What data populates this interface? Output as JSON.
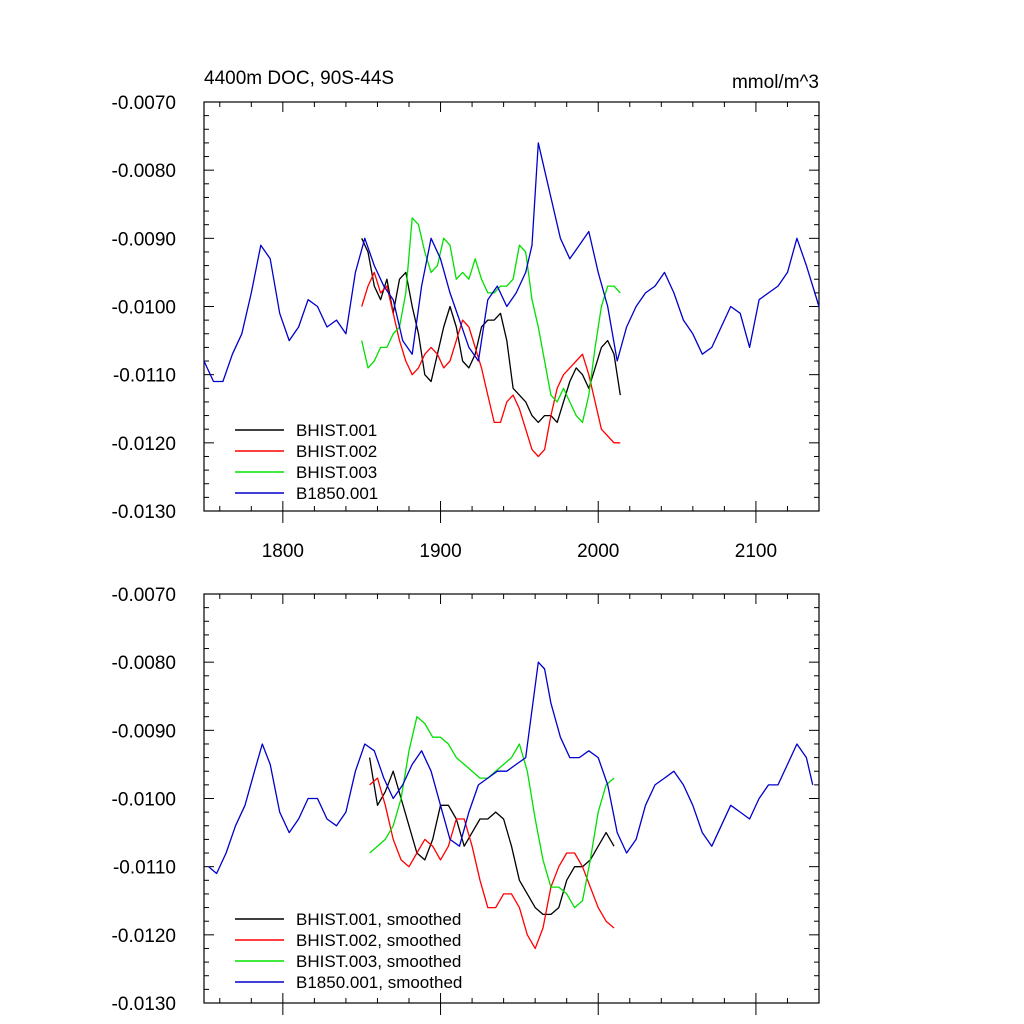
{
  "chart_data": [
    {
      "type": "line",
      "title": "4400m DOC, 90S-44S",
      "units_label": "mmol/m^3",
      "xlim": [
        1750,
        2140
      ],
      "ylim": [
        -0.013,
        -0.007
      ],
      "y_inverted": true,
      "x_ticks": [
        1800,
        1900,
        2000,
        2100
      ],
      "x_tick_labels": [
        "1800",
        "1900",
        "2000",
        "2100"
      ],
      "y_ticks": [
        -0.007,
        -0.008,
        -0.009,
        -0.01,
        -0.011,
        -0.012,
        -0.013
      ],
      "y_tick_labels": [
        "-0.0070",
        "-0.0080",
        "-0.0090",
        "-0.0100",
        "-0.0110",
        "-0.0120",
        "-0.0130"
      ],
      "legend_position": "bottom-left",
      "series": [
        {
          "name": "BHIST.001",
          "color": "#000000",
          "x": [
            1850,
            1854,
            1858,
            1862,
            1866,
            1870,
            1874,
            1878,
            1882,
            1886,
            1890,
            1894,
            1898,
            1902,
            1906,
            1910,
            1914,
            1918,
            1922,
            1926,
            1930,
            1934,
            1938,
            1942,
            1946,
            1950,
            1954,
            1958,
            1962,
            1966,
            1970,
            1974,
            1978,
            1982,
            1986,
            1990,
            1994,
            1998,
            2002,
            2006,
            2010,
            2014
          ],
          "y": [
            -0.009,
            -0.0092,
            -0.0097,
            -0.0099,
            -0.0096,
            -0.0101,
            -0.0096,
            -0.0095,
            -0.01,
            -0.0104,
            -0.011,
            -0.0111,
            -0.0107,
            -0.0103,
            -0.01,
            -0.0103,
            -0.0108,
            -0.0109,
            -0.0107,
            -0.0103,
            -0.0102,
            -0.0102,
            -0.0101,
            -0.0105,
            -0.0112,
            -0.0113,
            -0.0114,
            -0.0116,
            -0.0117,
            -0.0116,
            -0.0116,
            -0.0117,
            -0.0114,
            -0.0111,
            -0.0109,
            -0.011,
            -0.0112,
            -0.0109,
            -0.0106,
            -0.0105,
            -0.0107,
            -0.0113
          ]
        },
        {
          "name": "BHIST.002",
          "color": "#ff0000",
          "x": [
            1850,
            1854,
            1858,
            1862,
            1866,
            1870,
            1874,
            1878,
            1882,
            1886,
            1890,
            1894,
            1898,
            1902,
            1906,
            1910,
            1914,
            1918,
            1922,
            1926,
            1930,
            1934,
            1938,
            1942,
            1946,
            1950,
            1954,
            1958,
            1962,
            1966,
            1970,
            1974,
            1978,
            1982,
            1986,
            1990,
            1994,
            1998,
            2002,
            2006,
            2010,
            2014
          ],
          "y": [
            -0.01,
            -0.0097,
            -0.0095,
            -0.0098,
            -0.0097,
            -0.0101,
            -0.0105,
            -0.0108,
            -0.011,
            -0.0109,
            -0.0107,
            -0.0106,
            -0.0107,
            -0.0109,
            -0.0108,
            -0.0105,
            -0.0102,
            -0.0103,
            -0.0106,
            -0.0109,
            -0.0113,
            -0.0117,
            -0.0117,
            -0.0114,
            -0.0113,
            -0.0115,
            -0.0118,
            -0.0121,
            -0.0122,
            -0.0121,
            -0.0116,
            -0.0112,
            -0.011,
            -0.0109,
            -0.0108,
            -0.0107,
            -0.011,
            -0.0114,
            -0.0118,
            -0.0119,
            -0.012,
            -0.012
          ]
        },
        {
          "name": "BHIST.003",
          "color": "#00e000",
          "x": [
            1850,
            1854,
            1858,
            1862,
            1866,
            1870,
            1874,
            1878,
            1882,
            1886,
            1890,
            1894,
            1898,
            1902,
            1906,
            1910,
            1914,
            1918,
            1922,
            1926,
            1930,
            1934,
            1938,
            1942,
            1946,
            1950,
            1954,
            1958,
            1962,
            1966,
            1970,
            1974,
            1978,
            1982,
            1986,
            1990,
            1994,
            1998,
            2002,
            2006,
            2010,
            2014
          ],
          "y": [
            -0.0105,
            -0.0109,
            -0.0108,
            -0.0106,
            -0.0106,
            -0.0104,
            -0.0103,
            -0.0098,
            -0.0087,
            -0.0088,
            -0.0092,
            -0.0095,
            -0.0094,
            -0.009,
            -0.0091,
            -0.0096,
            -0.0095,
            -0.0096,
            -0.0093,
            -0.0096,
            -0.0098,
            -0.0098,
            -0.0097,
            -0.0097,
            -0.0096,
            -0.0091,
            -0.0092,
            -0.0099,
            -0.0103,
            -0.0108,
            -0.0113,
            -0.0114,
            -0.0112,
            -0.0114,
            -0.0116,
            -0.0117,
            -0.0113,
            -0.0106,
            -0.01,
            -0.0097,
            -0.0097,
            -0.0098
          ]
        },
        {
          "name": "B1850.001",
          "color": "#0000cc",
          "x": [
            1750,
            1756,
            1762,
            1768,
            1774,
            1780,
            1786,
            1792,
            1798,
            1804,
            1810,
            1816,
            1822,
            1828,
            1834,
            1840,
            1846,
            1852,
            1858,
            1864,
            1870,
            1876,
            1882,
            1888,
            1894,
            1900,
            1906,
            1912,
            1918,
            1924,
            1930,
            1936,
            1942,
            1948,
            1954,
            1958,
            1962,
            1966,
            1970,
            1976,
            1982,
            1988,
            1994,
            2000,
            2006,
            2012,
            2018,
            2024,
            2030,
            2036,
            2042,
            2048,
            2054,
            2060,
            2066,
            2072,
            2078,
            2084,
            2090,
            2096,
            2102,
            2108,
            2114,
            2120,
            2126,
            2132,
            2140
          ],
          "y": [
            -0.0108,
            -0.0111,
            -0.0111,
            -0.0107,
            -0.0104,
            -0.0098,
            -0.0091,
            -0.0093,
            -0.0101,
            -0.0105,
            -0.0103,
            -0.0099,
            -0.01,
            -0.0103,
            -0.0102,
            -0.0104,
            -0.0095,
            -0.009,
            -0.0094,
            -0.0097,
            -0.0099,
            -0.0105,
            -0.0107,
            -0.0097,
            -0.009,
            -0.0093,
            -0.0098,
            -0.0102,
            -0.0106,
            -0.0108,
            -0.0099,
            -0.0097,
            -0.01,
            -0.0098,
            -0.0095,
            -0.0091,
            -0.0076,
            -0.008,
            -0.0084,
            -0.009,
            -0.0093,
            -0.0091,
            -0.0089,
            -0.0095,
            -0.01,
            -0.0108,
            -0.0103,
            -0.01,
            -0.0098,
            -0.0097,
            -0.0095,
            -0.0098,
            -0.0102,
            -0.0104,
            -0.0107,
            -0.0106,
            -0.0103,
            -0.01,
            -0.0101,
            -0.0106,
            -0.0099,
            -0.0098,
            -0.0097,
            -0.0095,
            -0.009,
            -0.0094,
            -0.01
          ]
        }
      ]
    },
    {
      "type": "line",
      "xlim": [
        1750,
        2140
      ],
      "ylim": [
        -0.013,
        -0.007
      ],
      "y_inverted": true,
      "x_ticks": [
        1800,
        1900,
        2000,
        2100
      ],
      "y_ticks": [
        -0.007,
        -0.008,
        -0.009,
        -0.01,
        -0.011,
        -0.012,
        -0.013
      ],
      "y_tick_labels": [
        "-0.0070",
        "-0.0080",
        "-0.0090",
        "-0.0100",
        "-0.0110",
        "-0.0120",
        "-0.0130"
      ],
      "legend_position": "bottom-left",
      "series": [
        {
          "name": "BHIST.001, smoothed",
          "color": "#000000",
          "x": [
            1855,
            1860,
            1865,
            1870,
            1875,
            1880,
            1885,
            1890,
            1895,
            1900,
            1905,
            1910,
            1915,
            1920,
            1925,
            1930,
            1935,
            1940,
            1945,
            1950,
            1955,
            1960,
            1965,
            1970,
            1975,
            1980,
            1985,
            1990,
            1995,
            2000,
            2005,
            2010
          ],
          "y": [
            -0.0094,
            -0.0101,
            -0.0099,
            -0.0096,
            -0.01,
            -0.0104,
            -0.0108,
            -0.0109,
            -0.0106,
            -0.0101,
            -0.0101,
            -0.0103,
            -0.0107,
            -0.0105,
            -0.0103,
            -0.0103,
            -0.0102,
            -0.0103,
            -0.0107,
            -0.0112,
            -0.0114,
            -0.0116,
            -0.0117,
            -0.0117,
            -0.0116,
            -0.0112,
            -0.011,
            -0.011,
            -0.0109,
            -0.0107,
            -0.0105,
            -0.0107
          ]
        },
        {
          "name": "BHIST.002, smoothed",
          "color": "#ff0000",
          "x": [
            1855,
            1860,
            1865,
            1870,
            1875,
            1880,
            1885,
            1890,
            1895,
            1900,
            1905,
            1910,
            1915,
            1920,
            1925,
            1930,
            1935,
            1940,
            1945,
            1950,
            1955,
            1960,
            1965,
            1970,
            1975,
            1980,
            1985,
            1990,
            1995,
            2000,
            2005,
            2010
          ],
          "y": [
            -0.0098,
            -0.0097,
            -0.0101,
            -0.0106,
            -0.0109,
            -0.011,
            -0.0108,
            -0.0106,
            -0.0107,
            -0.0109,
            -0.0107,
            -0.0103,
            -0.0103,
            -0.0107,
            -0.0112,
            -0.0116,
            -0.0116,
            -0.0114,
            -0.0114,
            -0.0116,
            -0.012,
            -0.0122,
            -0.0119,
            -0.0113,
            -0.011,
            -0.0108,
            -0.0108,
            -0.011,
            -0.0113,
            -0.0116,
            -0.0118,
            -0.0119
          ]
        },
        {
          "name": "BHIST.003, smoothed",
          "color": "#00e000",
          "x": [
            1855,
            1860,
            1865,
            1870,
            1875,
            1880,
            1885,
            1890,
            1895,
            1900,
            1905,
            1910,
            1915,
            1920,
            1925,
            1930,
            1935,
            1940,
            1945,
            1950,
            1955,
            1960,
            1965,
            1970,
            1975,
            1980,
            1985,
            1990,
            1995,
            2000,
            2005,
            2010
          ],
          "y": [
            -0.0108,
            -0.0107,
            -0.0106,
            -0.0104,
            -0.01,
            -0.0093,
            -0.0088,
            -0.0089,
            -0.0091,
            -0.0091,
            -0.0092,
            -0.0094,
            -0.0095,
            -0.0096,
            -0.0097,
            -0.0097,
            -0.0096,
            -0.0095,
            -0.0094,
            -0.0092,
            -0.0096,
            -0.0103,
            -0.0109,
            -0.0113,
            -0.0113,
            -0.0114,
            -0.0116,
            -0.0115,
            -0.0109,
            -0.0102,
            -0.0098,
            -0.0097
          ]
        },
        {
          "name": "B1850.001, smoothed",
          "color": "#0000cc",
          "x": [
            1753,
            1758,
            1764,
            1770,
            1776,
            1782,
            1787,
            1792,
            1798,
            1804,
            1810,
            1816,
            1822,
            1828,
            1834,
            1840,
            1846,
            1852,
            1858,
            1864,
            1870,
            1876,
            1882,
            1888,
            1894,
            1900,
            1906,
            1912,
            1918,
            1924,
            1930,
            1936,
            1942,
            1948,
            1954,
            1958,
            1962,
            1966,
            1970,
            1976,
            1982,
            1988,
            1994,
            2000,
            2006,
            2012,
            2018,
            2024,
            2030,
            2036,
            2042,
            2048,
            2054,
            2060,
            2066,
            2072,
            2078,
            2084,
            2090,
            2096,
            2102,
            2108,
            2114,
            2120,
            2126,
            2132,
            2136
          ],
          "y": [
            -0.011,
            -0.0111,
            -0.0108,
            -0.0104,
            -0.0101,
            -0.0096,
            -0.0092,
            -0.0095,
            -0.0102,
            -0.0105,
            -0.0103,
            -0.01,
            -0.01,
            -0.0103,
            -0.0104,
            -0.0102,
            -0.0096,
            -0.0092,
            -0.0093,
            -0.0097,
            -0.01,
            -0.0098,
            -0.0095,
            -0.0093,
            -0.0096,
            -0.0101,
            -0.0106,
            -0.0107,
            -0.0102,
            -0.0098,
            -0.0097,
            -0.0096,
            -0.0096,
            -0.0095,
            -0.0094,
            -0.0087,
            -0.008,
            -0.0081,
            -0.0086,
            -0.0091,
            -0.0094,
            -0.0094,
            -0.0093,
            -0.0094,
            -0.0098,
            -0.0105,
            -0.0108,
            -0.0106,
            -0.0101,
            -0.0098,
            -0.0097,
            -0.0096,
            -0.0098,
            -0.0101,
            -0.0105,
            -0.0107,
            -0.0104,
            -0.0101,
            -0.0102,
            -0.0103,
            -0.01,
            -0.0098,
            -0.0098,
            -0.0095,
            -0.0092,
            -0.0094,
            -0.0098
          ]
        }
      ]
    }
  ]
}
